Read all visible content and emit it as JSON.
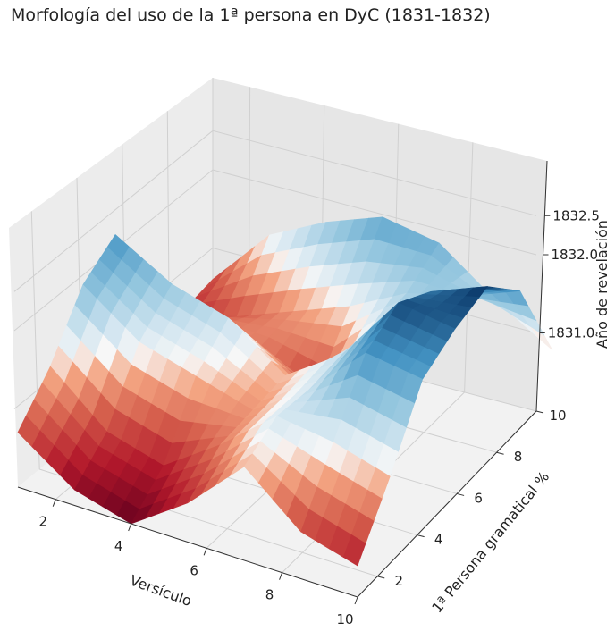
{
  "chart_data": {
    "type": "surface3d",
    "title": "Morfología del uso de la 1ª persona en DyC (1831-1832)",
    "xlabel": "Versículo",
    "ylabel": "1ª Persona gramatical %",
    "zlabel": "Año de revelación",
    "xlim": [
      1,
      10
    ],
    "ylim": [
      1,
      10
    ],
    "x_ticks": [
      "2",
      "4",
      "6",
      "8",
      "10"
    ],
    "y_ticks": [
      "2",
      "4",
      "6",
      "8",
      "10"
    ],
    "z_ticks": [
      "1831.0",
      "1832.0",
      "1832.5"
    ],
    "grid": true,
    "colormap": "RdBu",
    "surface": {
      "x": [
        1,
        2.5,
        4,
        5.5,
        7,
        8.5,
        10
      ],
      "y": [
        1,
        2.5,
        4,
        5.5,
        7,
        8.5,
        10
      ],
      "z": [
        [
          1830.7,
          1830.2,
          1830.0,
          1830.5,
          1831.2,
          1830.6,
          1830.4
        ],
        [
          1831.2,
          1830.6,
          1830.4,
          1830.9,
          1831.5,
          1831.4,
          1831.2
        ],
        [
          1831.9,
          1831.4,
          1831.2,
          1831.0,
          1831.5,
          1832.2,
          1832.1
        ],
        [
          1832.2,
          1831.8,
          1831.6,
          1831.1,
          1831.6,
          1832.5,
          1832.4
        ],
        [
          1831.3,
          1831.0,
          1830.9,
          1830.6,
          1831.6,
          1832.3,
          1832.6
        ],
        [
          1830.5,
          1830.7,
          1831.0,
          1831.3,
          1831.7,
          1831.9,
          1832.2
        ],
        [
          1830.6,
          1831.4,
          1831.8,
          1832.1,
          1832.0,
          1831.5,
          1831.1
        ]
      ]
    }
  }
}
